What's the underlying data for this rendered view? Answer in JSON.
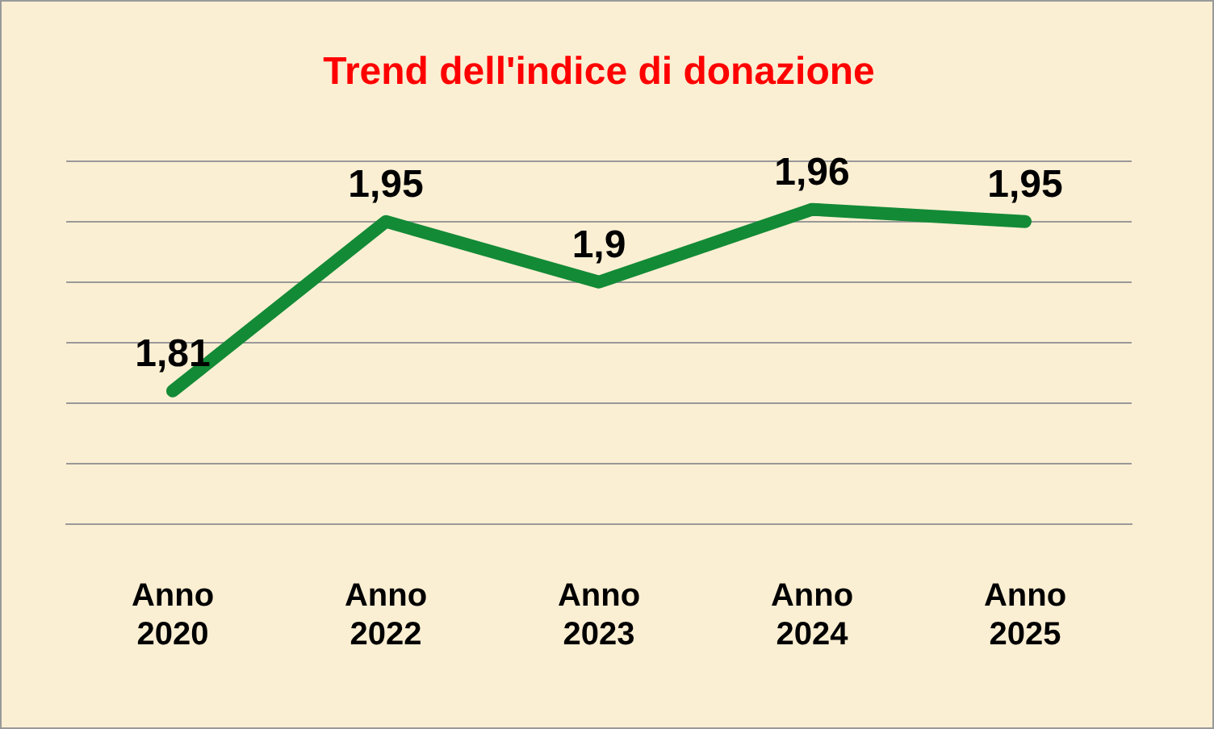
{
  "chart_data": {
    "type": "line",
    "title": "Trend dell'indice di donazione",
    "categories": [
      "Anno 2020",
      "Anno 2022",
      "Anno 2023",
      "Anno 2024",
      "Anno 2025"
    ],
    "series": [
      {
        "color": "#138a36",
        "values": [
          1.81,
          1.95,
          1.9,
          1.96,
          1.95
        ],
        "value_labels": [
          "1,81",
          "1,95",
          "1,9",
          "1,96",
          "1,95"
        ]
      }
    ],
    "ylim": [
      1.7,
      2.0
    ],
    "yticks": [
      {
        "value": 1.7,
        "label": null
      },
      {
        "value": 1.75,
        "label": null
      },
      {
        "value": 1.8,
        "label": null
      },
      {
        "value": 1.85,
        "label": null
      },
      {
        "value": 1.9,
        "label": null
      },
      {
        "value": 1.95,
        "label": null
      },
      {
        "value": 2.0,
        "label": null
      }
    ],
    "grid": "y",
    "tick_labels": "x",
    "legend": false,
    "marker": "none",
    "line_style": "solid"
  }
}
